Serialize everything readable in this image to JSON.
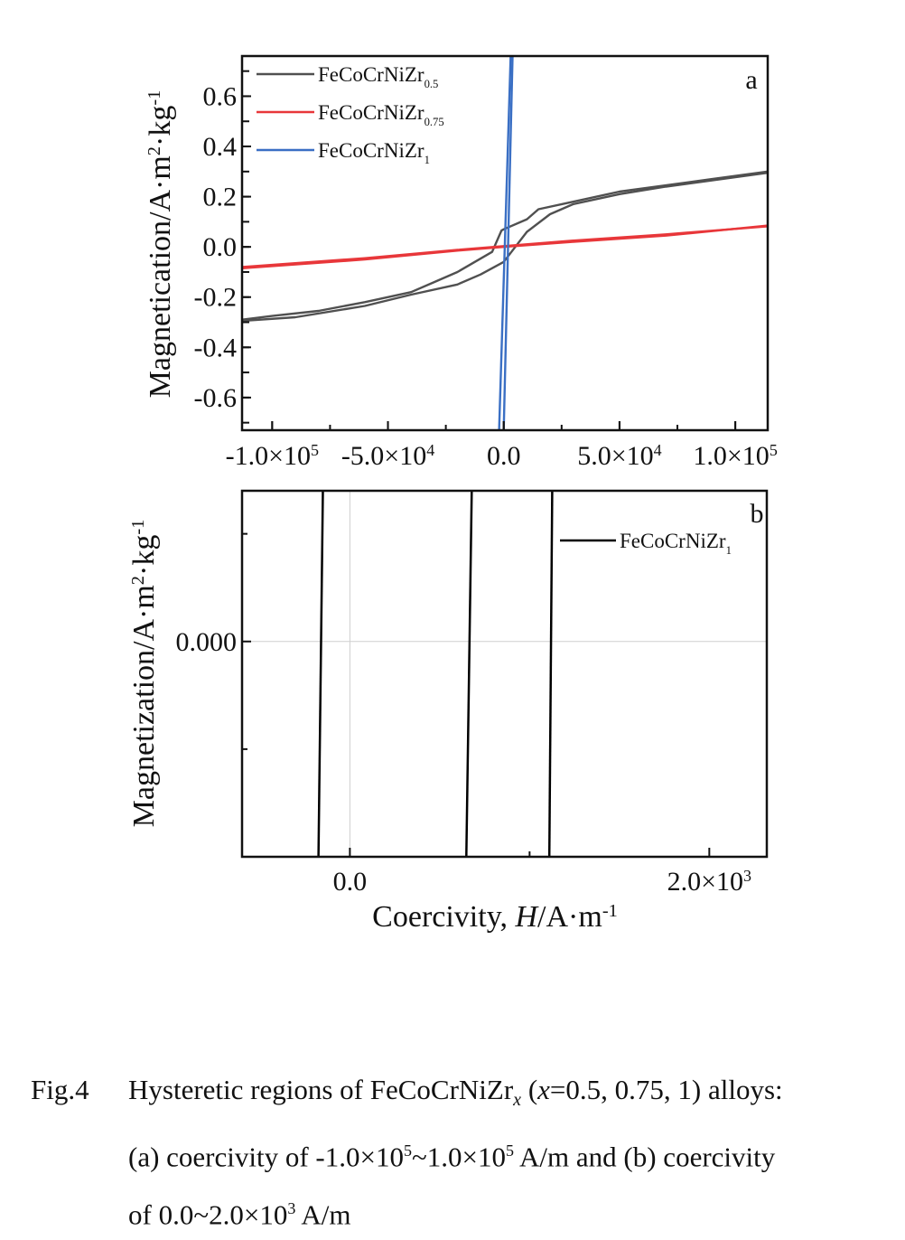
{
  "chart_data": [
    {
      "type": "line",
      "panel_label": "a",
      "xlabel": "",
      "ylabel": "Magnetication/A·m²·kg⁻¹",
      "ylabel_parts": {
        "main": "Magnetication/A·m",
        "sup1": "2",
        "mid": "·kg",
        "sup2": "-1"
      },
      "xlim": [
        -113000,
        114000
      ],
      "ylim": [
        -0.73,
        0.76
      ],
      "xticks": [
        {
          "value": -100000,
          "label": "-1.0×10",
          "exp": "5"
        },
        {
          "value": -50000,
          "label": "-5.0×10",
          "exp": "4"
        },
        {
          "value": 0,
          "label": "0.0",
          "exp": ""
        },
        {
          "value": 50000,
          "label": "5.0×10",
          "exp": "4"
        },
        {
          "value": 100000,
          "label": "1.0×10",
          "exp": "5"
        }
      ],
      "yticks": [
        {
          "value": 0.6,
          "label": "0.6"
        },
        {
          "value": 0.4,
          "label": "0.4"
        },
        {
          "value": 0.2,
          "label": "0.2"
        },
        {
          "value": 0.0,
          "label": "0.0"
        },
        {
          "value": -0.2,
          "label": "-0.2"
        },
        {
          "value": -0.4,
          "label": "-0.4"
        },
        {
          "value": -0.6,
          "label": "-0.6"
        }
      ],
      "legend_position": "top-left",
      "series": [
        {
          "name": "FeCoCrNiZr",
          "sub": "0.5",
          "color": "#505050",
          "branches": [
            [
              [
                114000,
                0.3
              ],
              [
                90000,
                0.27
              ],
              [
                70000,
                0.245
              ],
              [
                50000,
                0.22
              ],
              [
                30000,
                0.18
              ],
              [
                15000,
                0.15
              ],
              [
                10000,
                0.11
              ],
              [
                0,
                0.07
              ],
              [
                -1000,
                0.065
              ],
              [
                -5000,
                -0.02
              ],
              [
                -20000,
                -0.1
              ],
              [
                -30000,
                -0.14
              ],
              [
                -40000,
                -0.18
              ],
              [
                -60000,
                -0.22
              ],
              [
                -80000,
                -0.255
              ],
              [
                -100000,
                -0.275
              ],
              [
                -113000,
                -0.29
              ]
            ],
            [
              [
                -113000,
                -0.295
              ],
              [
                -90000,
                -0.28
              ],
              [
                -60000,
                -0.235
              ],
              [
                -40000,
                -0.19
              ],
              [
                -20000,
                -0.15
              ],
              [
                -10000,
                -0.11
              ],
              [
                0,
                -0.06
              ],
              [
                5000,
                0.0
              ],
              [
                10000,
                0.06
              ],
              [
                20000,
                0.13
              ],
              [
                30000,
                0.17
              ],
              [
                50000,
                0.21
              ],
              [
                70000,
                0.24
              ],
              [
                90000,
                0.265
              ],
              [
                114000,
                0.295
              ]
            ]
          ]
        },
        {
          "name": "FeCoCrNiZr",
          "sub": "0.75",
          "color": "#e8373a",
          "branches": [
            [
              [
                -113000,
                -0.085
              ],
              [
                -60000,
                -0.05
              ],
              [
                -20000,
                -0.015
              ],
              [
                0,
                0.0
              ],
              [
                30000,
                0.02
              ],
              [
                70000,
                0.045
              ],
              [
                114000,
                0.085
              ]
            ],
            [
              [
                114000,
                0.082
              ],
              [
                70000,
                0.05
              ],
              [
                30000,
                0.025
              ],
              [
                0,
                0.003
              ],
              [
                -20000,
                -0.012
              ],
              [
                -60000,
                -0.045
              ],
              [
                -113000,
                -0.08
              ]
            ]
          ]
        },
        {
          "name": "FeCoCrNiZr",
          "sub": "1",
          "color": "#3a6fc4",
          "branches": [
            [
              [
                -2000,
                -0.73
              ],
              [
                3000,
                0.76
              ]
            ],
            [
              [
                3800,
                0.76
              ],
              [
                0,
                -0.73
              ]
            ]
          ]
        }
      ]
    },
    {
      "type": "line",
      "panel_label": "b",
      "xlabel": "Coercivity, H/A·m⁻¹",
      "xlabel_parts": {
        "pre": "Coercivity, ",
        "italic": "H",
        "post": "/A·m",
        "sup": "-1"
      },
      "ylabel": "Magnetization/A·m²·kg⁻¹",
      "ylabel_parts": {
        "main": "Magnetization/A·m",
        "sup1": "2",
        "mid": "·kg",
        "sup2": "-1"
      },
      "xlim": [
        -600,
        2320
      ],
      "ylim": [
        -1.2,
        0.84
      ],
      "xticks": [
        {
          "value": 0,
          "label": "0.0",
          "exp": ""
        },
        {
          "value": 2000,
          "label": "2.0×10",
          "exp": "3"
        }
      ],
      "yticks": [
        {
          "value": 0,
          "label": "0.000"
        }
      ],
      "grid": "zero lines",
      "legend_position": "top-right",
      "series": [
        {
          "name": "FeCoCrNiZr",
          "sub": "1",
          "color": "#000000",
          "branches": [
            [
              [
                -150,
                0.84
              ],
              [
                -175,
                -1.2
              ]
            ],
            [
              [
                678,
                0.84
              ],
              [
                648,
                -1.2
              ]
            ],
            [
              [
                1126,
                0.84
              ],
              [
                1110,
                -1.2
              ]
            ]
          ]
        }
      ]
    }
  ],
  "caption": {
    "label": "Fig.4",
    "line1_pre": "Hysteretic regions of FeCoCrNiZr",
    "line1_sub": "x",
    "line1_open": " (",
    "line1_var": "x",
    "line1_post": "=0.5, 0.75, 1) alloys:",
    "line2_pre": "(a) coercivity of -1.0×10",
    "line2_sup1": "5",
    "line2_mid": "~1.0×10",
    "line2_sup2": "5",
    "line2_post": " A/m and (b) coercivity",
    "line3_pre": "of 0.0~2.0×10",
    "line3_sup": "3",
    "line3_post": " A/m"
  }
}
